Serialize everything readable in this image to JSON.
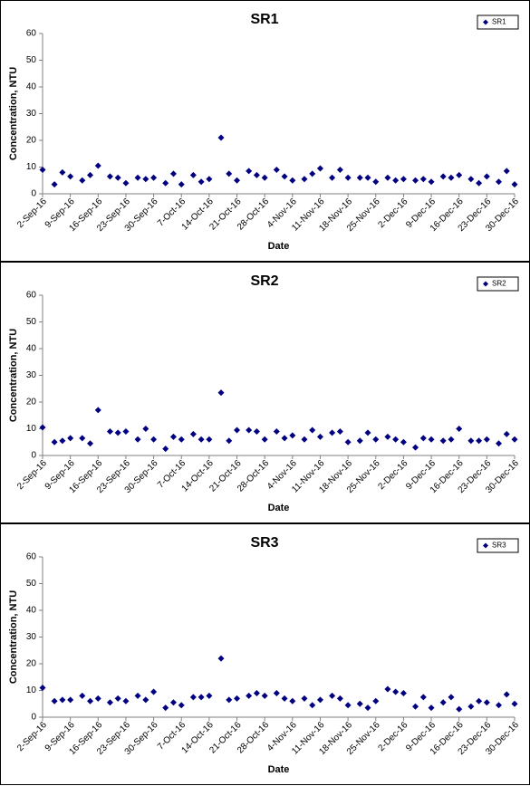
{
  "chart_data": [
    {
      "type": "scatter",
      "title": "SR1",
      "xlabel": "Date",
      "ylabel": "Concentration, NTU",
      "legend": "upper right",
      "marker": "diamond",
      "x": [
        "2-Sep-16",
        "5-Sep-16",
        "7-Sep-16",
        "9-Sep-16",
        "12-Sep-16",
        "14-Sep-16",
        "16-Sep-16",
        "19-Sep-16",
        "21-Sep-16",
        "23-Sep-16",
        "26-Sep-16",
        "28-Sep-16",
        "30-Sep-16",
        "3-Oct-16",
        "5-Oct-16",
        "7-Oct-16",
        "10-Oct-16",
        "12-Oct-16",
        "14-Oct-16",
        "17-Oct-16",
        "19-Oct-16",
        "21-Oct-16",
        "24-Oct-16",
        "26-Oct-16",
        "28-Oct-16",
        "31-Oct-16",
        "2-Nov-16",
        "4-Nov-16",
        "7-Nov-16",
        "9-Nov-16",
        "11-Nov-16",
        "14-Nov-16",
        "16-Nov-16",
        "18-Nov-16",
        "21-Nov-16",
        "23-Nov-16",
        "25-Nov-16",
        "28-Nov-16",
        "30-Nov-16",
        "2-Dec-16",
        "5-Dec-16",
        "7-Dec-16",
        "9-Dec-16",
        "12-Dec-16",
        "14-Dec-16",
        "16-Dec-16",
        "19-Dec-16",
        "21-Dec-16",
        "23-Dec-16",
        "26-Dec-16",
        "28-Dec-16",
        "30-Dec-16"
      ],
      "series": [
        {
          "name": "SR1",
          "color": "#000080",
          "values": [
            9,
            3.5,
            8,
            6.5,
            5,
            7,
            10.5,
            6.5,
            6,
            4,
            6,
            5.5,
            6,
            4,
            7.5,
            3.5,
            7,
            4.5,
            5.5,
            21,
            7.5,
            5,
            8.5,
            7,
            6,
            9,
            6.5,
            5,
            5.5,
            7.5,
            9.5,
            6,
            9,
            6,
            6,
            6,
            4.5,
            6,
            5,
            5.5,
            5,
            5.5,
            4.5,
            6.5,
            6,
            7,
            5.5,
            4,
            6.5,
            4.5,
            8.5,
            3.5
          ]
        }
      ],
      "ylim": [
        0,
        60
      ],
      "yticks": [
        0,
        10,
        20,
        30,
        40,
        50,
        60
      ],
      "xlim": [
        "2-Sep-16",
        "30-Dec-16"
      ],
      "xticks": [
        "2-Sep-16",
        "9-Sep-16",
        "16-Sep-16",
        "23-Sep-16",
        "30-Sep-16",
        "7-Oct-16",
        "14-Oct-16",
        "21-Oct-16",
        "28-Oct-16",
        "4-Nov-16",
        "11-Nov-16",
        "18-Nov-16",
        "25-Nov-16",
        "2-Dec-16",
        "9-Dec-16",
        "16-Dec-16",
        "23-Dec-16",
        "30-Dec-16"
      ]
    },
    {
      "type": "scatter",
      "title": "SR2",
      "xlabel": "Date",
      "ylabel": "Concentration, NTU",
      "legend": "upper right",
      "marker": "diamond",
      "x": [
        "2-Sep-16",
        "5-Sep-16",
        "7-Sep-16",
        "9-Sep-16",
        "12-Sep-16",
        "14-Sep-16",
        "16-Sep-16",
        "19-Sep-16",
        "21-Sep-16",
        "23-Sep-16",
        "26-Sep-16",
        "28-Sep-16",
        "30-Sep-16",
        "3-Oct-16",
        "5-Oct-16",
        "7-Oct-16",
        "10-Oct-16",
        "12-Oct-16",
        "14-Oct-16",
        "17-Oct-16",
        "19-Oct-16",
        "21-Oct-16",
        "24-Oct-16",
        "26-Oct-16",
        "28-Oct-16",
        "31-Oct-16",
        "2-Nov-16",
        "4-Nov-16",
        "7-Nov-16",
        "9-Nov-16",
        "11-Nov-16",
        "14-Nov-16",
        "16-Nov-16",
        "18-Nov-16",
        "21-Nov-16",
        "23-Nov-16",
        "25-Nov-16",
        "28-Nov-16",
        "30-Nov-16",
        "2-Dec-16",
        "5-Dec-16",
        "7-Dec-16",
        "9-Dec-16",
        "12-Dec-16",
        "14-Dec-16",
        "16-Dec-16",
        "19-Dec-16",
        "21-Dec-16",
        "23-Dec-16",
        "26-Dec-16",
        "28-Dec-16",
        "30-Dec-16"
      ],
      "series": [
        {
          "name": "SR2",
          "color": "#000080",
          "values": [
            10.5,
            5,
            5.5,
            6.5,
            6.5,
            4.5,
            17,
            9,
            8.5,
            9,
            6,
            10,
            6,
            2.5,
            7,
            6,
            8,
            6,
            6,
            23.5,
            5.5,
            9.5,
            9.5,
            9,
            6,
            9,
            6.5,
            7.5,
            6,
            9.5,
            7,
            8.5,
            9,
            5,
            5.5,
            8.5,
            6,
            7,
            6,
            5,
            3,
            6.5,
            6,
            5.5,
            6,
            10,
            5.5,
            5.5,
            6,
            4.5,
            8,
            6
          ]
        }
      ],
      "ylim": [
        0,
        60
      ],
      "yticks": [
        0,
        10,
        20,
        30,
        40,
        50,
        60
      ],
      "xlim": [
        "2-Sep-16",
        "30-Dec-16"
      ],
      "xticks": [
        "2-Sep-16",
        "9-Sep-16",
        "16-Sep-16",
        "23-Sep-16",
        "30-Sep-16",
        "7-Oct-16",
        "14-Oct-16",
        "21-Oct-16",
        "28-Oct-16",
        "4-Nov-16",
        "11-Nov-16",
        "18-Nov-16",
        "25-Nov-16",
        "2-Dec-16",
        "9-Dec-16",
        "16-Dec-16",
        "23-Dec-16",
        "30-Dec-16"
      ]
    },
    {
      "type": "scatter",
      "title": "SR3",
      "xlabel": "Date",
      "ylabel": "Concentration, NTU",
      "legend": "upper right",
      "marker": "diamond",
      "x": [
        "2-Sep-16",
        "5-Sep-16",
        "7-Sep-16",
        "9-Sep-16",
        "12-Sep-16",
        "14-Sep-16",
        "16-Sep-16",
        "19-Sep-16",
        "21-Sep-16",
        "23-Sep-16",
        "26-Sep-16",
        "28-Sep-16",
        "30-Sep-16",
        "3-Oct-16",
        "5-Oct-16",
        "7-Oct-16",
        "10-Oct-16",
        "12-Oct-16",
        "14-Oct-16",
        "17-Oct-16",
        "19-Oct-16",
        "21-Oct-16",
        "24-Oct-16",
        "26-Oct-16",
        "28-Oct-16",
        "31-Oct-16",
        "2-Nov-16",
        "4-Nov-16",
        "7-Nov-16",
        "9-Nov-16",
        "11-Nov-16",
        "14-Nov-16",
        "16-Nov-16",
        "18-Nov-16",
        "21-Nov-16",
        "23-Nov-16",
        "25-Nov-16",
        "28-Nov-16",
        "30-Nov-16",
        "2-Dec-16",
        "5-Dec-16",
        "7-Dec-16",
        "9-Dec-16",
        "12-Dec-16",
        "14-Dec-16",
        "16-Dec-16",
        "19-Dec-16",
        "21-Dec-16",
        "23-Dec-16",
        "26-Dec-16",
        "28-Dec-16",
        "30-Dec-16"
      ],
      "series": [
        {
          "name": "SR3",
          "color": "#000080",
          "values": [
            11,
            6,
            6.5,
            6.5,
            8,
            6,
            7,
            5.5,
            7,
            6,
            8,
            6.5,
            9.5,
            3.5,
            5.5,
            4.5,
            7.5,
            7.5,
            8,
            22,
            6.5,
            7,
            8,
            9,
            8,
            9,
            7,
            6,
            7,
            4.5,
            6.5,
            8,
            7,
            4.5,
            5,
            3.5,
            6,
            10.5,
            9.5,
            9,
            4,
            7.5,
            3.5,
            5.5,
            7.5,
            3,
            4,
            6,
            5.5,
            4.5,
            8.5,
            5
          ]
        }
      ],
      "ylim": [
        0,
        60
      ],
      "yticks": [
        0,
        10,
        20,
        30,
        40,
        50,
        60
      ],
      "xlim": [
        "2-Sep-16",
        "30-Dec-16"
      ],
      "xticks": [
        "2-Sep-16",
        "9-Sep-16",
        "16-Sep-16",
        "23-Sep-16",
        "30-Sep-16",
        "7-Oct-16",
        "14-Oct-16",
        "21-Oct-16",
        "28-Oct-16",
        "4-Nov-16",
        "11-Nov-16",
        "18-Nov-16",
        "25-Nov-16",
        "2-Dec-16",
        "9-Dec-16",
        "16-Dec-16",
        "23-Dec-16",
        "30-Dec-16"
      ]
    }
  ]
}
